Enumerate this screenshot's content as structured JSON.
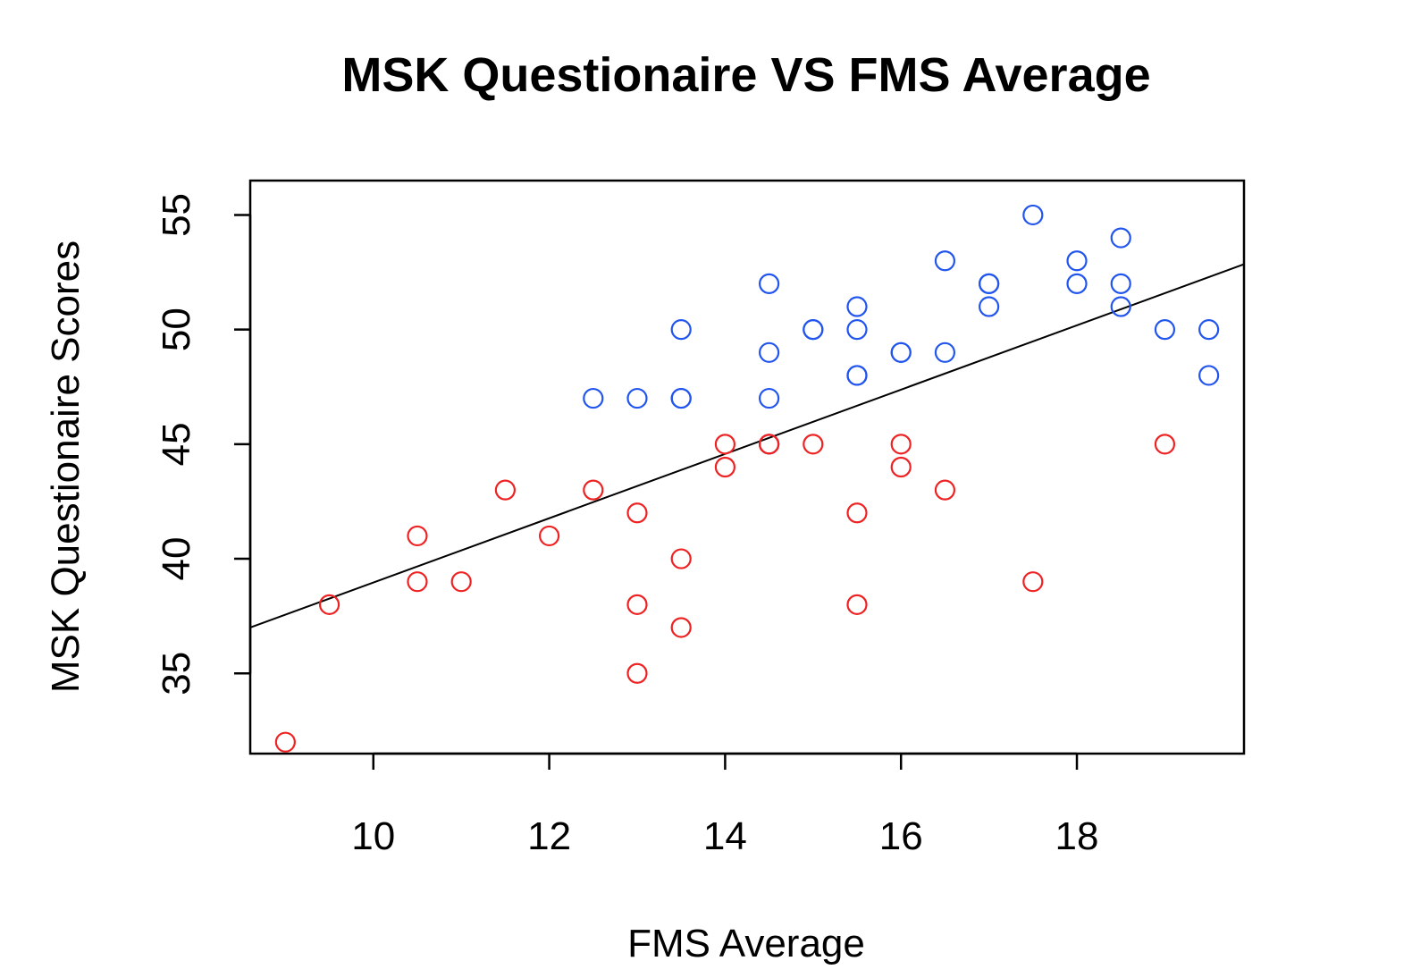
{
  "chart_data": {
    "type": "scatter",
    "title": "MSK Questionaire VS FMS Average",
    "xlabel": "FMS Average",
    "ylabel": "MSK Questionaire Scores",
    "xlim": [
      8.6,
      19.9
    ],
    "ylim": [
      31.5,
      56.5
    ],
    "x_ticks": [
      10,
      12,
      14,
      16,
      18
    ],
    "y_ticks": [
      35,
      40,
      45,
      50,
      55
    ],
    "grid": false,
    "legend": "none",
    "series": [
      {
        "color": "#2255ee",
        "marker": "open-circle",
        "x": [
          12.5,
          13,
          13.5,
          13.5,
          13.5,
          14.5,
          14.5,
          14.5,
          14.5,
          15,
          15,
          15.5,
          15.5,
          15.5,
          15.5,
          16,
          16,
          16.5,
          16.5,
          17,
          17,
          17,
          17.5,
          18,
          18,
          18.5,
          18.5,
          18.5,
          19,
          19.5,
          19.5
        ],
        "y": [
          47,
          47,
          50,
          47,
          47,
          52,
          49,
          47,
          45,
          50,
          50,
          51,
          50,
          48,
          48,
          49,
          49,
          53,
          49,
          52,
          52,
          51,
          55,
          53,
          52,
          54,
          52,
          51,
          50,
          50,
          48
        ]
      },
      {
        "color": "#ee2222",
        "marker": "open-circle",
        "x": [
          9,
          9.5,
          10.5,
          10.5,
          11,
          11.5,
          12,
          12.5,
          13,
          13,
          13,
          13.5,
          13.5,
          14,
          14,
          14.5,
          14.5,
          15,
          15.5,
          15.5,
          16,
          16,
          16.5,
          17.5,
          19
        ],
        "y": [
          32,
          38,
          41,
          39,
          39,
          43,
          41,
          43,
          42,
          38,
          35,
          40,
          37,
          45,
          44,
          45,
          45,
          45,
          42,
          38,
          45,
          44,
          43,
          39,
          45
        ]
      }
    ],
    "fit_line": {
      "color": "#000000",
      "x": [
        8.6,
        19.9
      ],
      "y": [
        37.0,
        52.85
      ]
    }
  }
}
